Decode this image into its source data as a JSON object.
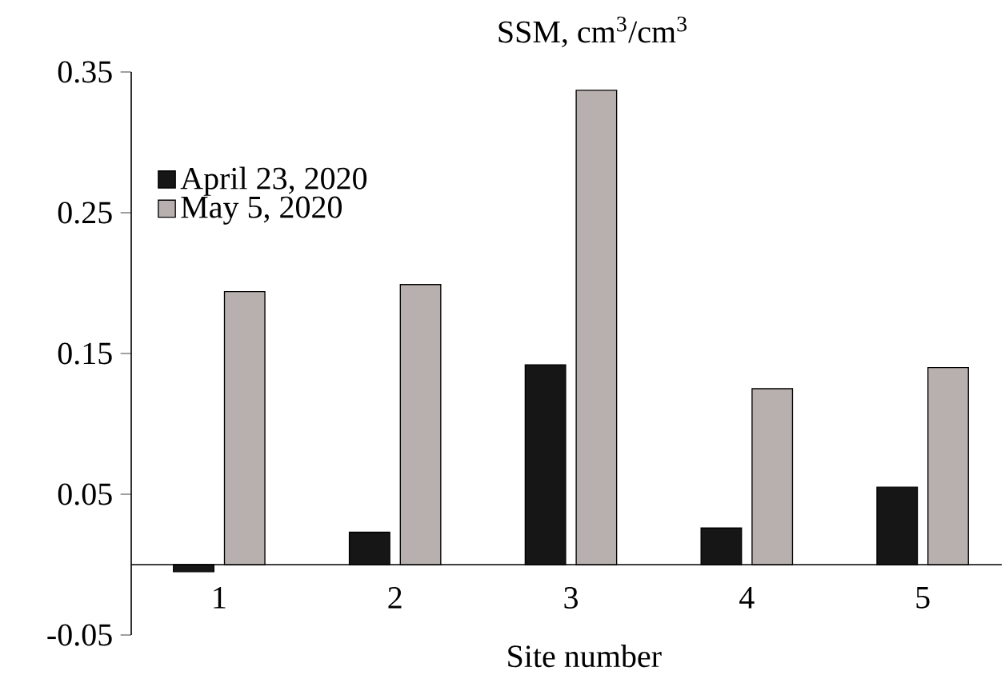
{
  "chart_data": {
    "type": "bar",
    "title": "SSM, cm$^{3}$/cm$^{3}$",
    "xlabel": "Site number",
    "categories": [
      "1",
      "2",
      "3",
      "4",
      "5"
    ],
    "series": [
      {
        "name": "April 23, 2020",
        "color": "#161616",
        "values": [
          -0.005,
          0.023,
          0.142,
          0.026,
          0.055
        ]
      },
      {
        "name": "May 5, 2020",
        "color": "#b8b0ae",
        "values": [
          0.194,
          0.199,
          0.337,
          0.125,
          0.14
        ]
      }
    ],
    "ylim": [
      -0.05,
      0.35
    ],
    "yticks": [
      -0.05,
      0.05,
      0.15,
      0.25,
      0.35
    ],
    "grid": false,
    "legend": "top left"
  }
}
